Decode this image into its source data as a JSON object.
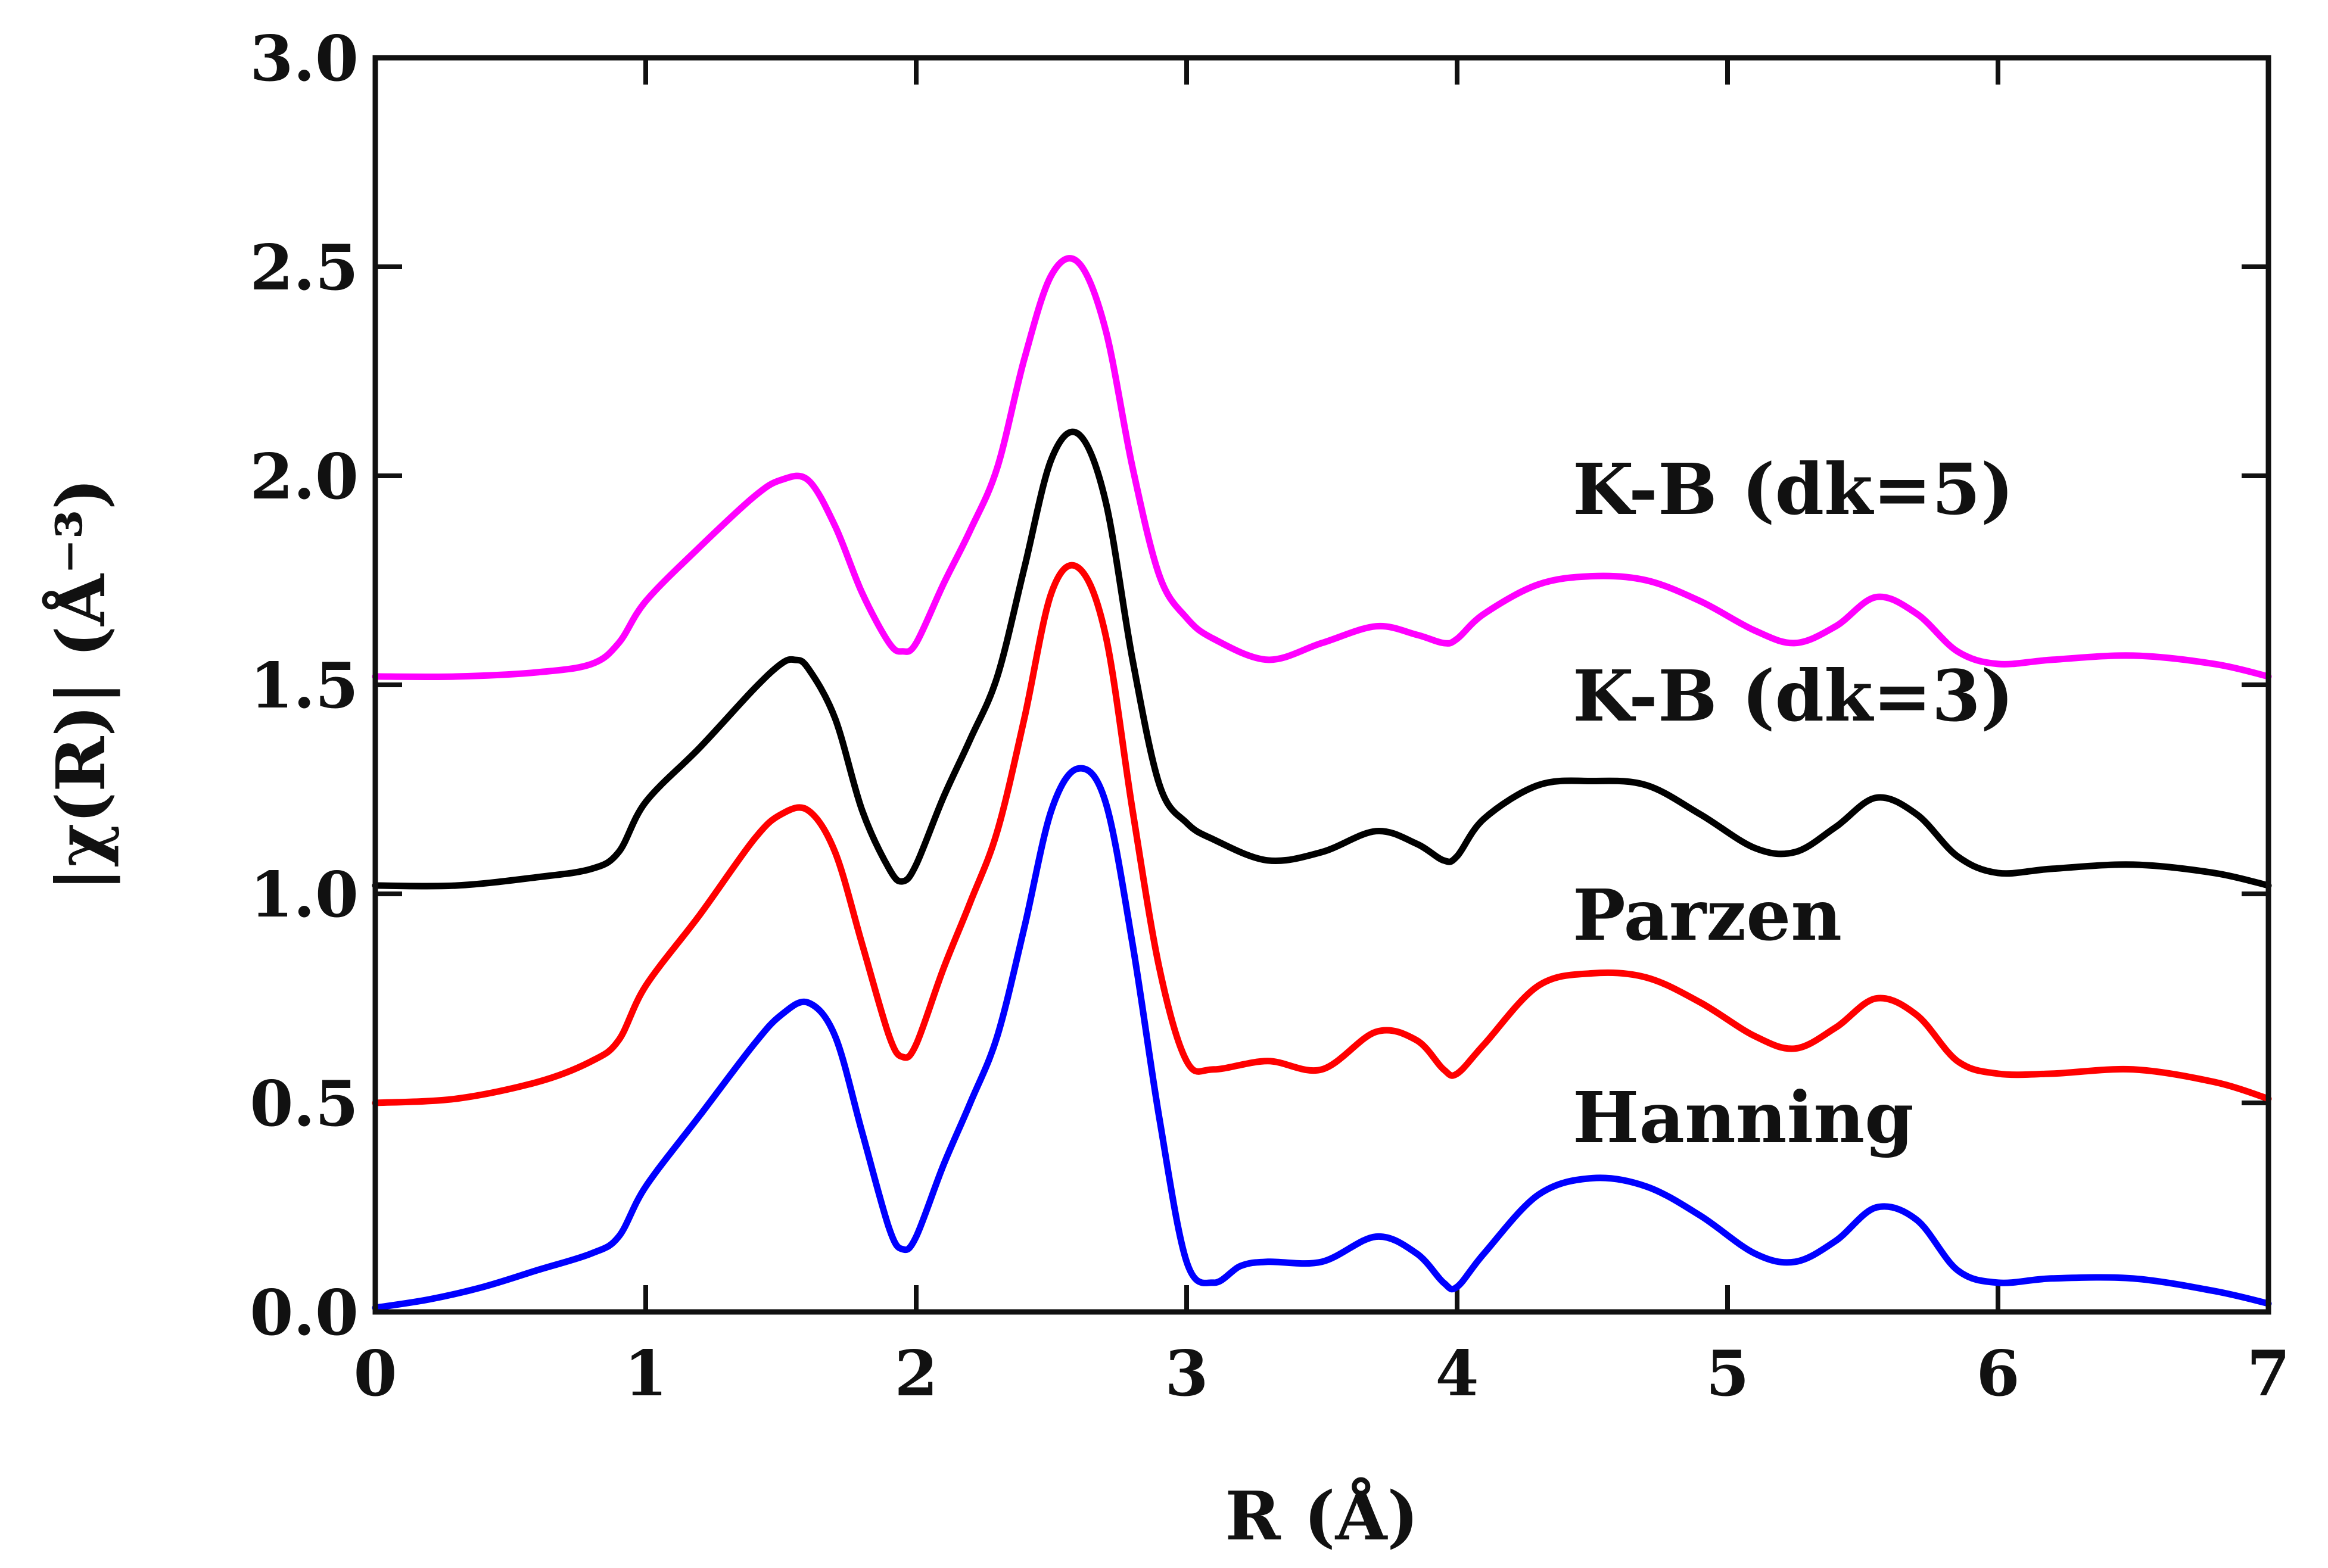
{
  "chart_data": {
    "type": "line",
    "xlabel": "R (Å)",
    "ylabel": "|χ(R)| (Å⁻³)",
    "xlim": [
      0,
      7
    ],
    "ylim": [
      0,
      3
    ],
    "grid": false,
    "x_ticks": [
      "0",
      "1",
      "2",
      "3",
      "4",
      "5",
      "6",
      "7"
    ],
    "y_ticks": [
      "0.0",
      "0.5",
      "1.0",
      "1.5",
      "2.0",
      "2.5",
      "3.0"
    ],
    "series": [
      {
        "name": "Hanning",
        "color": "#0000ff",
        "x": [
          0,
          0.2,
          0.4,
          0.6,
          0.8,
          0.9,
          1.0,
          1.2,
          1.4,
          1.5,
          1.6,
          1.7,
          1.8,
          1.9,
          1.95,
          2.0,
          2.1,
          2.2,
          2.3,
          2.4,
          2.5,
          2.6,
          2.7,
          2.8,
          2.9,
          3.0,
          3.1,
          3.2,
          3.3,
          3.5,
          3.7,
          3.85,
          3.95,
          4.0,
          4.1,
          4.3,
          4.5,
          4.7,
          4.9,
          5.1,
          5.25,
          5.4,
          5.55,
          5.7,
          5.85,
          6.0,
          6.2,
          6.5,
          6.8,
          7.0
        ],
        "values": [
          0.01,
          0.03,
          0.06,
          0.1,
          0.14,
          0.18,
          0.3,
          0.47,
          0.64,
          0.71,
          0.74,
          0.66,
          0.43,
          0.2,
          0.15,
          0.18,
          0.35,
          0.5,
          0.66,
          0.92,
          1.2,
          1.3,
          1.22,
          0.88,
          0.46,
          0.12,
          0.07,
          0.11,
          0.12,
          0.12,
          0.18,
          0.14,
          0.07,
          0.06,
          0.14,
          0.28,
          0.32,
          0.3,
          0.23,
          0.14,
          0.12,
          0.17,
          0.25,
          0.22,
          0.1,
          0.07,
          0.08,
          0.08,
          0.05,
          0.02
        ]
      },
      {
        "name": "Parzen",
        "color": "#ff0000",
        "x": [
          0,
          0.3,
          0.6,
          0.8,
          0.9,
          1.0,
          1.2,
          1.4,
          1.5,
          1.6,
          1.7,
          1.8,
          1.9,
          1.95,
          2.0,
          2.1,
          2.2,
          2.3,
          2.4,
          2.5,
          2.6,
          2.7,
          2.8,
          2.9,
          3.0,
          3.1,
          3.3,
          3.5,
          3.7,
          3.85,
          3.95,
          4.0,
          4.1,
          4.3,
          4.5,
          4.7,
          4.9,
          5.1,
          5.25,
          5.4,
          5.55,
          5.7,
          5.85,
          6.0,
          6.2,
          6.5,
          6.8,
          7.0
        ],
        "values": [
          0.5,
          0.51,
          0.55,
          0.6,
          0.65,
          0.78,
          0.95,
          1.13,
          1.19,
          1.2,
          1.1,
          0.88,
          0.66,
          0.61,
          0.64,
          0.82,
          0.98,
          1.15,
          1.42,
          1.72,
          1.78,
          1.62,
          1.2,
          0.82,
          0.6,
          0.58,
          0.6,
          0.58,
          0.67,
          0.65,
          0.58,
          0.57,
          0.64,
          0.78,
          0.81,
          0.8,
          0.74,
          0.66,
          0.63,
          0.68,
          0.75,
          0.71,
          0.6,
          0.57,
          0.57,
          0.58,
          0.55,
          0.51
        ]
      },
      {
        "name": "K-B (dk=3)",
        "color": "#000000",
        "x": [
          0,
          0.3,
          0.6,
          0.8,
          0.9,
          1.0,
          1.2,
          1.4,
          1.5,
          1.55,
          1.6,
          1.7,
          1.8,
          1.9,
          1.95,
          2.0,
          2.1,
          2.2,
          2.3,
          2.4,
          2.5,
          2.6,
          2.7,
          2.8,
          2.9,
          3.0,
          3.1,
          3.3,
          3.5,
          3.7,
          3.85,
          3.95,
          4.0,
          4.1,
          4.3,
          4.5,
          4.7,
          4.9,
          5.1,
          5.25,
          5.4,
          5.55,
          5.7,
          5.85,
          6.0,
          6.2,
          6.5,
          6.8,
          7.0
        ],
        "values": [
          1.02,
          1.02,
          1.04,
          1.06,
          1.1,
          1.22,
          1.35,
          1.49,
          1.55,
          1.56,
          1.54,
          1.42,
          1.2,
          1.06,
          1.03,
          1.07,
          1.23,
          1.37,
          1.52,
          1.78,
          2.04,
          2.1,
          1.94,
          1.56,
          1.26,
          1.17,
          1.13,
          1.08,
          1.1,
          1.15,
          1.12,
          1.08,
          1.09,
          1.18,
          1.26,
          1.27,
          1.26,
          1.19,
          1.11,
          1.1,
          1.16,
          1.23,
          1.19,
          1.09,
          1.05,
          1.06,
          1.07,
          1.05,
          1.02
        ]
      },
      {
        "name": "K-B (dk=5)",
        "color": "#ff00ff",
        "x": [
          0,
          0.3,
          0.6,
          0.8,
          0.9,
          1.0,
          1.2,
          1.4,
          1.5,
          1.6,
          1.7,
          1.8,
          1.9,
          1.95,
          2.0,
          2.1,
          2.2,
          2.3,
          2.4,
          2.5,
          2.6,
          2.7,
          2.8,
          2.9,
          3.0,
          3.1,
          3.3,
          3.5,
          3.7,
          3.85,
          3.95,
          4.0,
          4.1,
          4.3,
          4.5,
          4.7,
          4.9,
          5.1,
          5.25,
          5.4,
          5.55,
          5.7,
          5.85,
          6.0,
          6.2,
          6.5,
          6.8,
          7.0
        ],
        "values": [
          1.52,
          1.52,
          1.53,
          1.55,
          1.6,
          1.7,
          1.83,
          1.95,
          1.99,
          1.99,
          1.88,
          1.72,
          1.6,
          1.58,
          1.6,
          1.74,
          1.87,
          2.02,
          2.28,
          2.48,
          2.51,
          2.35,
          2.02,
          1.76,
          1.66,
          1.61,
          1.56,
          1.6,
          1.64,
          1.62,
          1.6,
          1.61,
          1.67,
          1.74,
          1.76,
          1.75,
          1.7,
          1.63,
          1.6,
          1.64,
          1.71,
          1.67,
          1.58,
          1.55,
          1.56,
          1.57,
          1.55,
          1.52
        ]
      }
    ],
    "label_order": [
      "K-B (dk=5)",
      "K-B (dk=3)",
      "Parzen",
      "Hanning"
    ],
    "series_labels": {
      "kb5": "K-B (dk=5)",
      "kb3": "K-B (dk=3)",
      "parzen": "Parzen",
      "hanning": "Hanning"
    }
  }
}
